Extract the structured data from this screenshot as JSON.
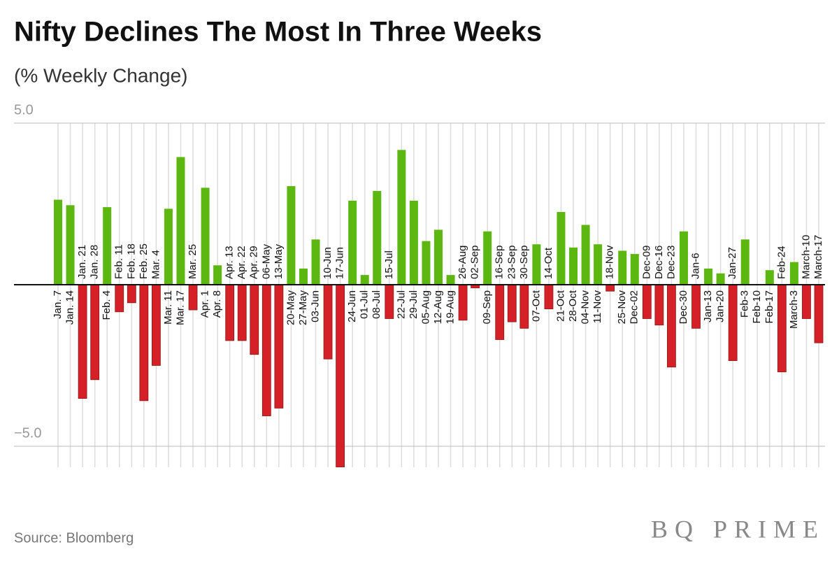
{
  "chart_data": {
    "type": "bar",
    "title": "Nifty Declines The Most In Three Weeks",
    "subtitle": "(% Weekly Change)",
    "source": "Source: Bloomberg",
    "brand": "BQ PRIME",
    "categories": [
      "Jan. 7",
      "Jan. 14",
      "Jan. 21",
      "Jan. 28",
      "Feb. 4",
      "Feb. 11",
      "Feb. 18",
      "Feb. 25",
      "Mar. 4",
      "Mar. 11",
      "Mar. 17",
      "Mar. 25",
      "Apr. 1",
      "Apr. 8",
      "Apr. 13",
      "Apr. 22",
      "Apr. 29",
      "06-May",
      "13-May",
      "20-May",
      "27-May",
      "03-Jun",
      "10-Jun",
      "17-Jun",
      "24-Jun",
      "01-Jul",
      "08-Jul",
      "15-Jul",
      "22-Jul",
      "29-Jul",
      "05-Aug",
      "12-Aug",
      "19-Aug",
      "26-Aug",
      "02-Sep",
      "09-Sep",
      "16-Sep",
      "23-Sep",
      "30-Sep",
      "07-Oct",
      "14-Oct",
      "21-Oct",
      "28-Oct",
      "04-Nov",
      "11-Nov",
      "18-Nov",
      "25-Nov",
      "Dec-02",
      "Dec-09",
      "Dec-16",
      "Dec-23",
      "Dec-30",
      "Jan-6",
      "Jan-13",
      "Jan-20",
      "Jan-27",
      "Feb-3",
      "Feb-10",
      "Feb-17",
      "Feb-24",
      "March-3",
      "March-10",
      "March-17"
    ],
    "values": [
      2.63,
      2.46,
      -3.52,
      -2.94,
      2.4,
      -0.84,
      -0.56,
      -3.59,
      -2.5,
      2.35,
      3.95,
      -0.78,
      3.0,
      0.6,
      -1.73,
      -1.73,
      -2.16,
      -4.06,
      -3.82,
      3.05,
      0.5,
      1.4,
      -2.3,
      -5.64,
      2.6,
      0.3,
      2.9,
      -1.05,
      4.17,
      2.6,
      1.35,
      1.7,
      0.3,
      -1.1,
      -0.1,
      1.65,
      -1.7,
      -1.15,
      -1.35,
      1.25,
      -0.75,
      2.25,
      1.15,
      1.85,
      1.25,
      -0.2,
      1.05,
      0.95,
      -1.05,
      -1.25,
      -2.55,
      1.65,
      -1.35,
      0.5,
      0.35,
      -2.35,
      1.4,
      0,
      0.45,
      -2.7,
      0.7,
      -1.05,
      -1.8
    ],
    "positive_color": "#5cb811",
    "negative_color": "#d42026",
    "ylim": [
      -5.65,
      5
    ],
    "yticks": [
      {
        "value": -5,
        "label": "−5.0"
      },
      {
        "value": 5,
        "label": "5.0"
      }
    ],
    "grid": true
  }
}
